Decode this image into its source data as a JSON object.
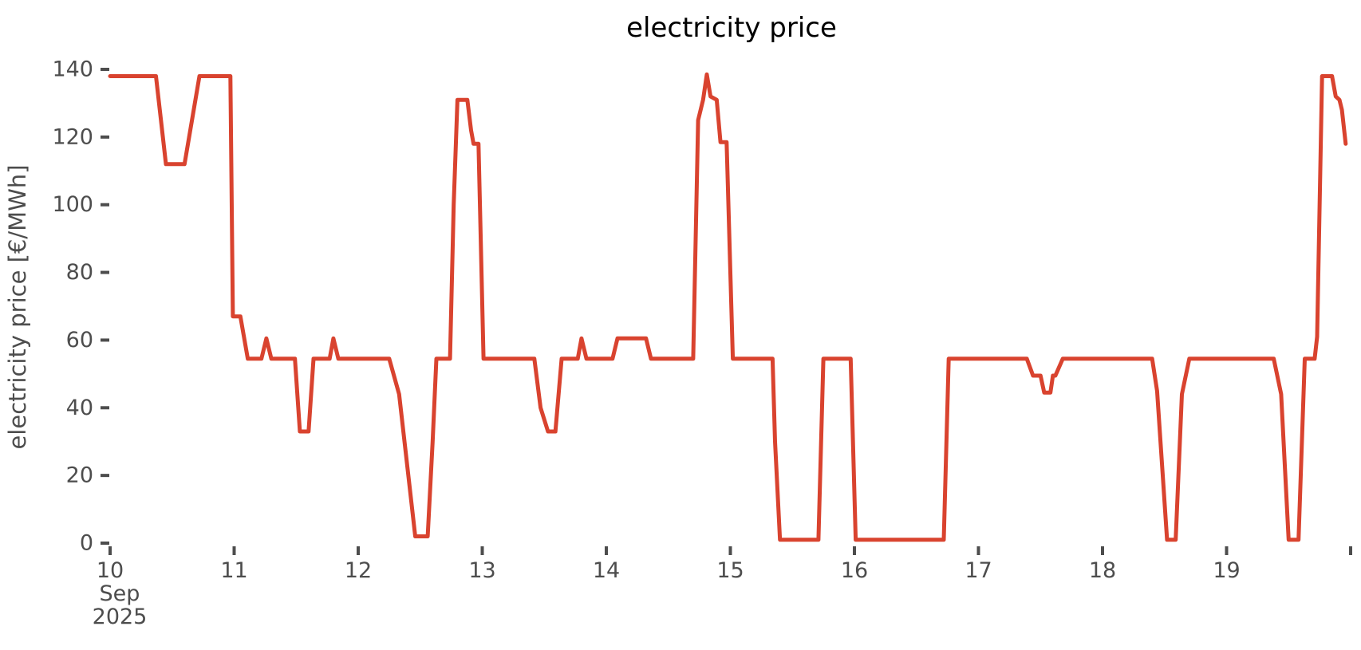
{
  "title": "electricity price",
  "y_axis": {
    "label": "electricity price [€/MWh]",
    "ticks": [
      0,
      20,
      40,
      60,
      80,
      100,
      120,
      140
    ]
  },
  "x_axis": {
    "tick_labels": [
      "10",
      "11",
      "12",
      "13",
      "14",
      "15",
      "16",
      "17",
      "18",
      "19",
      ""
    ],
    "month_label": "Sep",
    "year_label": "2025"
  },
  "colors": {
    "line": "#d9432f",
    "tick_text": "#4d4d4d",
    "title_text": "#000000",
    "background": "#ffffff"
  },
  "chart_data": {
    "type": "line",
    "series_name": "electricity price",
    "title": "electricity price",
    "ylabel": "electricity price [€/MWh]",
    "x_unit": "days since 2025-09-10 00:00",
    "x_tick_days": [
      "Sep 10",
      "Sep 11",
      "Sep 12",
      "Sep 13",
      "Sep 14",
      "Sep 15",
      "Sep 16",
      "Sep 17",
      "Sep 18",
      "Sep 19",
      "Sep 20"
    ],
    "x_range": [
      0,
      10
    ],
    "ylim": [
      0,
      145
    ],
    "grid": false,
    "legend": false,
    "points": [
      [
        0.0,
        138
      ],
      [
        0.37,
        138
      ],
      [
        0.45,
        112
      ],
      [
        0.6,
        112
      ],
      [
        0.72,
        138
      ],
      [
        0.97,
        138
      ],
      [
        0.99,
        67
      ],
      [
        1.05,
        67
      ],
      [
        1.11,
        54.5
      ],
      [
        1.22,
        54.5
      ],
      [
        1.26,
        60.5
      ],
      [
        1.3,
        54.5
      ],
      [
        1.49,
        54.5
      ],
      [
        1.53,
        33
      ],
      [
        1.6,
        33
      ],
      [
        1.64,
        54.5
      ],
      [
        1.77,
        54.5
      ],
      [
        1.8,
        60.5
      ],
      [
        1.84,
        54.5
      ],
      [
        2.25,
        54.5
      ],
      [
        2.33,
        44
      ],
      [
        2.46,
        2
      ],
      [
        2.56,
        2
      ],
      [
        2.6,
        30
      ],
      [
        2.63,
        54.5
      ],
      [
        2.74,
        54.5
      ],
      [
        2.77,
        100
      ],
      [
        2.8,
        131
      ],
      [
        2.88,
        131
      ],
      [
        2.91,
        122
      ],
      [
        2.93,
        118
      ],
      [
        2.97,
        118
      ],
      [
        3.01,
        54.5
      ],
      [
        3.42,
        54.5
      ],
      [
        3.47,
        40
      ],
      [
        3.53,
        33
      ],
      [
        3.59,
        33
      ],
      [
        3.64,
        54.5
      ],
      [
        3.77,
        54.5
      ],
      [
        3.8,
        60.5
      ],
      [
        3.84,
        54.5
      ],
      [
        4.05,
        54.5
      ],
      [
        4.09,
        60.5
      ],
      [
        4.32,
        60.5
      ],
      [
        4.36,
        54.5
      ],
      [
        4.7,
        54.5
      ],
      [
        4.74,
        125
      ],
      [
        4.78,
        131
      ],
      [
        4.81,
        138.5
      ],
      [
        4.84,
        132
      ],
      [
        4.89,
        131
      ],
      [
        4.92,
        118.5
      ],
      [
        4.97,
        118.5
      ],
      [
        5.02,
        54.5
      ],
      [
        5.34,
        54.5
      ],
      [
        5.36,
        30
      ],
      [
        5.4,
        1
      ],
      [
        5.71,
        1
      ],
      [
        5.75,
        54.5
      ],
      [
        5.97,
        54.5
      ],
      [
        6.01,
        1
      ],
      [
        6.72,
        1
      ],
      [
        6.76,
        54.5
      ],
      [
        7.39,
        54.5
      ],
      [
        7.44,
        49.5
      ],
      [
        7.5,
        49.5
      ],
      [
        7.53,
        44.5
      ],
      [
        7.58,
        44.5
      ],
      [
        7.6,
        49.5
      ],
      [
        7.62,
        49.5
      ],
      [
        7.68,
        54.5
      ],
      [
        8.4,
        54.5
      ],
      [
        8.44,
        45
      ],
      [
        8.52,
        1
      ],
      [
        8.59,
        1
      ],
      [
        8.64,
        44
      ],
      [
        8.7,
        54.5
      ],
      [
        9.38,
        54.5
      ],
      [
        9.44,
        44
      ],
      [
        9.5,
        1
      ],
      [
        9.58,
        1
      ],
      [
        9.63,
        54.5
      ],
      [
        9.71,
        54.5
      ],
      [
        9.73,
        61
      ],
      [
        9.77,
        138
      ],
      [
        9.85,
        138
      ],
      [
        9.88,
        132
      ],
      [
        9.91,
        131
      ],
      [
        9.93,
        128
      ],
      [
        9.96,
        118
      ]
    ]
  }
}
